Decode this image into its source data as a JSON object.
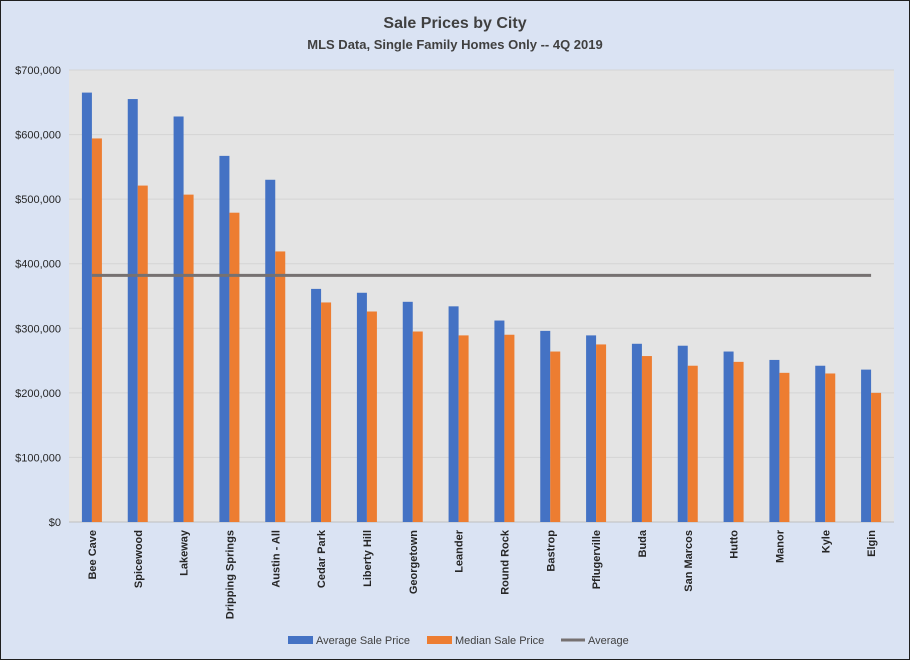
{
  "chart_data": {
    "type": "bar",
    "title": "Sale Prices by City",
    "subtitle": "MLS Data, Single Family Homes Only -- 4Q 2019",
    "categories": [
      "Bee Cave",
      "Spicewood",
      "Lakeway",
      "Dripping Springs",
      "Austin - All",
      "Cedar Park",
      "Liberty Hill",
      "Georgetown",
      "Leander",
      "Round Rock",
      "Bastrop",
      "Pflugerville",
      "Buda",
      "San Marcos",
      "Hutto",
      "Manor",
      "Kyle",
      "Elgin"
    ],
    "series": [
      {
        "name": "Average Sale Price",
        "type": "bar",
        "color": "#4472c4",
        "values": [
          665000,
          655000,
          628000,
          567000,
          530000,
          361000,
          355000,
          341000,
          334000,
          312000,
          296000,
          289000,
          276000,
          273000,
          264000,
          251000,
          242000,
          236000
        ]
      },
      {
        "name": "Median Sale Price",
        "type": "bar",
        "color": "#ed7d31",
        "values": [
          594000,
          521000,
          507000,
          479000,
          419000,
          340000,
          326000,
          295000,
          289000,
          290000,
          264000,
          275000,
          257000,
          242000,
          248000,
          231000,
          230000,
          200000
        ]
      },
      {
        "name": "Average",
        "type": "line",
        "color": "#767171",
        "values": [
          382000,
          382000,
          382000,
          382000,
          382000,
          382000,
          382000,
          382000,
          382000,
          382000,
          382000,
          382000,
          382000,
          382000,
          382000,
          382000,
          382000,
          382000
        ]
      }
    ],
    "yticks": [
      "$0",
      "$100,000",
      "$200,000",
      "$300,000",
      "$400,000",
      "$500,000",
      "$600,000",
      "$700,000"
    ],
    "ylim": [
      0,
      700000
    ],
    "grid": true,
    "legend_position": "bottom"
  }
}
